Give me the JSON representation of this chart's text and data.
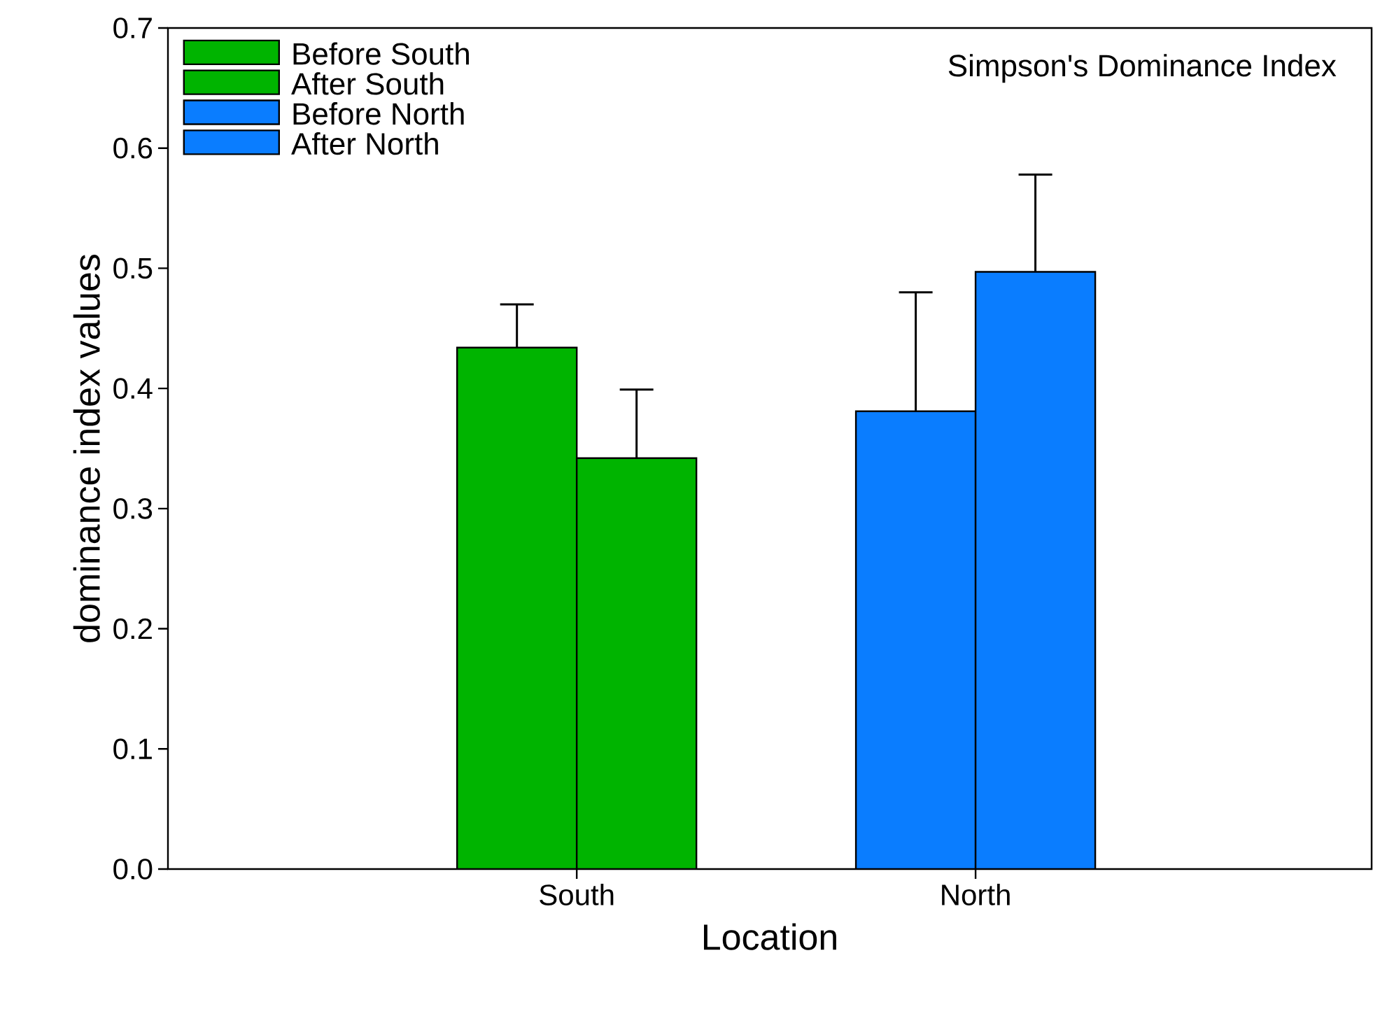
{
  "chart_data": {
    "type": "bar",
    "title": "Simpson's Dominance Index",
    "xlabel": "Location",
    "ylabel": "dominance index values",
    "categories": [
      "South",
      "North"
    ],
    "series": [
      {
        "name": "Before South",
        "color": "#00b400",
        "values": [
          0.434,
          null
        ],
        "errors": [
          0.036,
          null
        ]
      },
      {
        "name": "After South",
        "color": "#00b400",
        "values": [
          0.342,
          null
        ],
        "errors": [
          0.057,
          null
        ]
      },
      {
        "name": "Before North",
        "color": "#0a7dff",
        "values": [
          null,
          0.381
        ],
        "errors": [
          null,
          0.099
        ]
      },
      {
        "name": "After North",
        "color": "#0a7dff",
        "values": [
          null,
          0.497
        ],
        "errors": [
          null,
          0.081
        ]
      }
    ],
    "ylim": [
      0,
      0.7
    ],
    "yticks": [
      {
        "value": 0,
        "label": "0.0"
      },
      0.1,
      0.2,
      0.3,
      0.4,
      0.5,
      0.6,
      0.7
    ],
    "legend": "top left"
  }
}
